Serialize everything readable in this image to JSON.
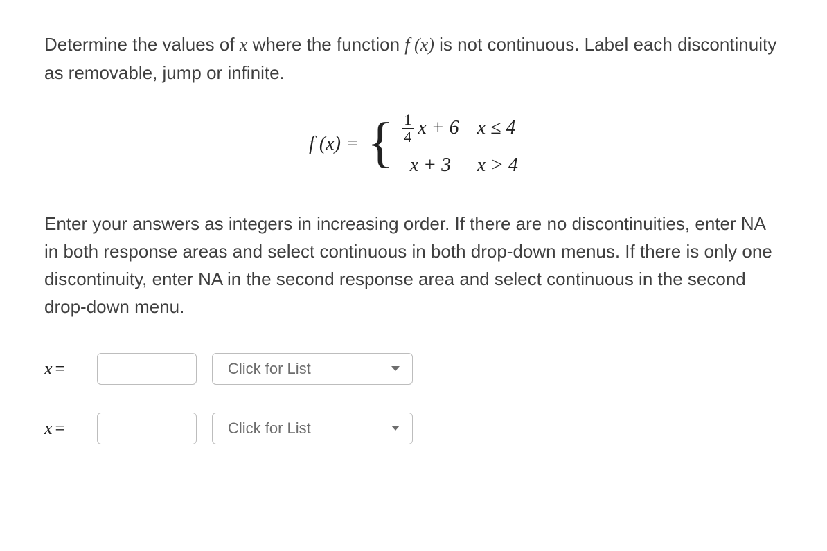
{
  "problem": {
    "intro_text_pre": "Determine the values of ",
    "intro_var": "x",
    "intro_text_mid": " where the function ",
    "intro_func": "f (x)",
    "intro_text_post": " is not continuous. Label each discontinuity as removable, jump or infinite."
  },
  "equation": {
    "lhs": "f (x) =",
    "case1": {
      "frac_num": "1",
      "frac_den": "4",
      "after_frac": "x + 6",
      "condition": "x ≤ 4"
    },
    "case2": {
      "expr": "x + 3",
      "condition": "x > 4"
    }
  },
  "instructions_text": "Enter your answers as integers in increasing order. If there are no discontinuities, enter NA in both response areas and select continuous in both drop-down menus. If there is only one discontinuity, enter NA in the second response area and select continuous in the second drop-down menu.",
  "answers": {
    "label_var": "x",
    "label_eq": "=",
    "dropdown_placeholder": "Click for List",
    "input1_value": "",
    "input2_value": ""
  },
  "colors": {
    "text": "#3f3f3f",
    "math": "#222222",
    "border": "#bdbdbd",
    "dropdown_text": "#6d6d6d",
    "background": "#ffffff"
  }
}
